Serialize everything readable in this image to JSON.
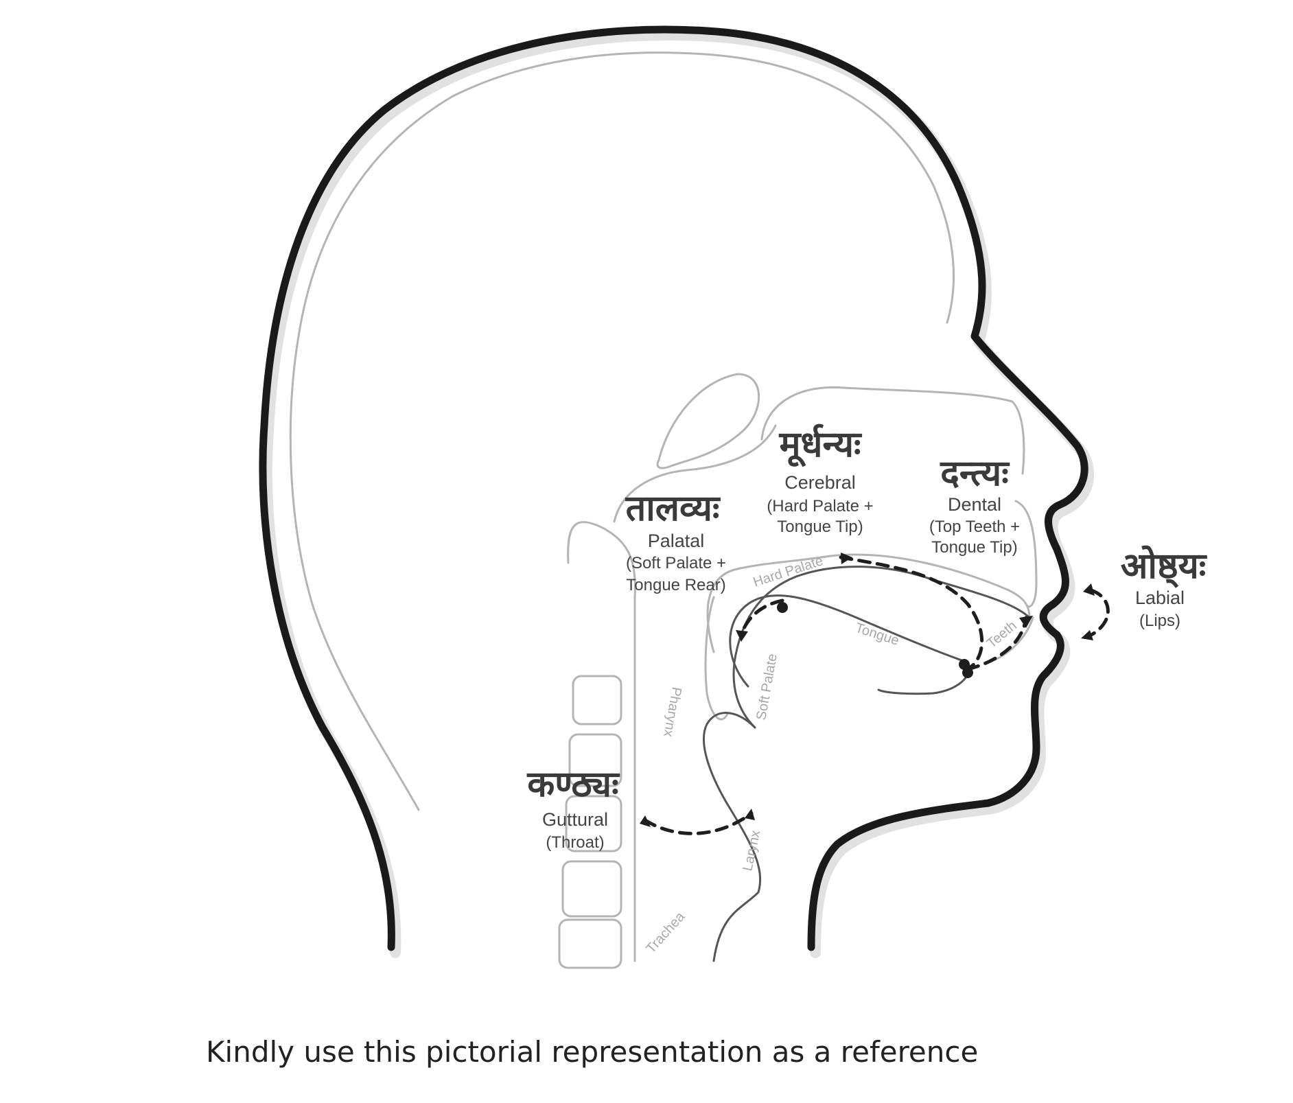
{
  "caption": "Kindly use this pictorial representation as a reference",
  "places_of_articulation": {
    "cerebral": {
      "sanskrit": "मूर्धन्यः",
      "english": "Cerebral",
      "sub_line1": "(Hard Palate +",
      "sub_line2": "Tongue Tip)"
    },
    "dental": {
      "sanskrit": "दन्त्यः",
      "english": "Dental",
      "sub_line1": "(Top Teeth +",
      "sub_line2": "Tongue Tip)"
    },
    "palatal": {
      "sanskrit": "तालव्यः",
      "english": "Palatal",
      "sub_line1": "(Soft Palate +",
      "sub_line2": "Tongue Rear)"
    },
    "labial": {
      "sanskrit": "ओष्ठ्यः",
      "english": "Labial",
      "sub_line1": "(Lips)"
    },
    "guttural": {
      "sanskrit": "कण्ठ्यः",
      "english": "Guttural",
      "sub_line1": "(Throat)"
    }
  },
  "anatomy_labels": {
    "hard_palate": "Hard Palate",
    "tongue": "Tongue",
    "teeth": "Teeth",
    "soft_palate": "Soft Palate",
    "pharynx": "Pharynx",
    "larynx": "Larynx",
    "trachea": "Trachea"
  }
}
